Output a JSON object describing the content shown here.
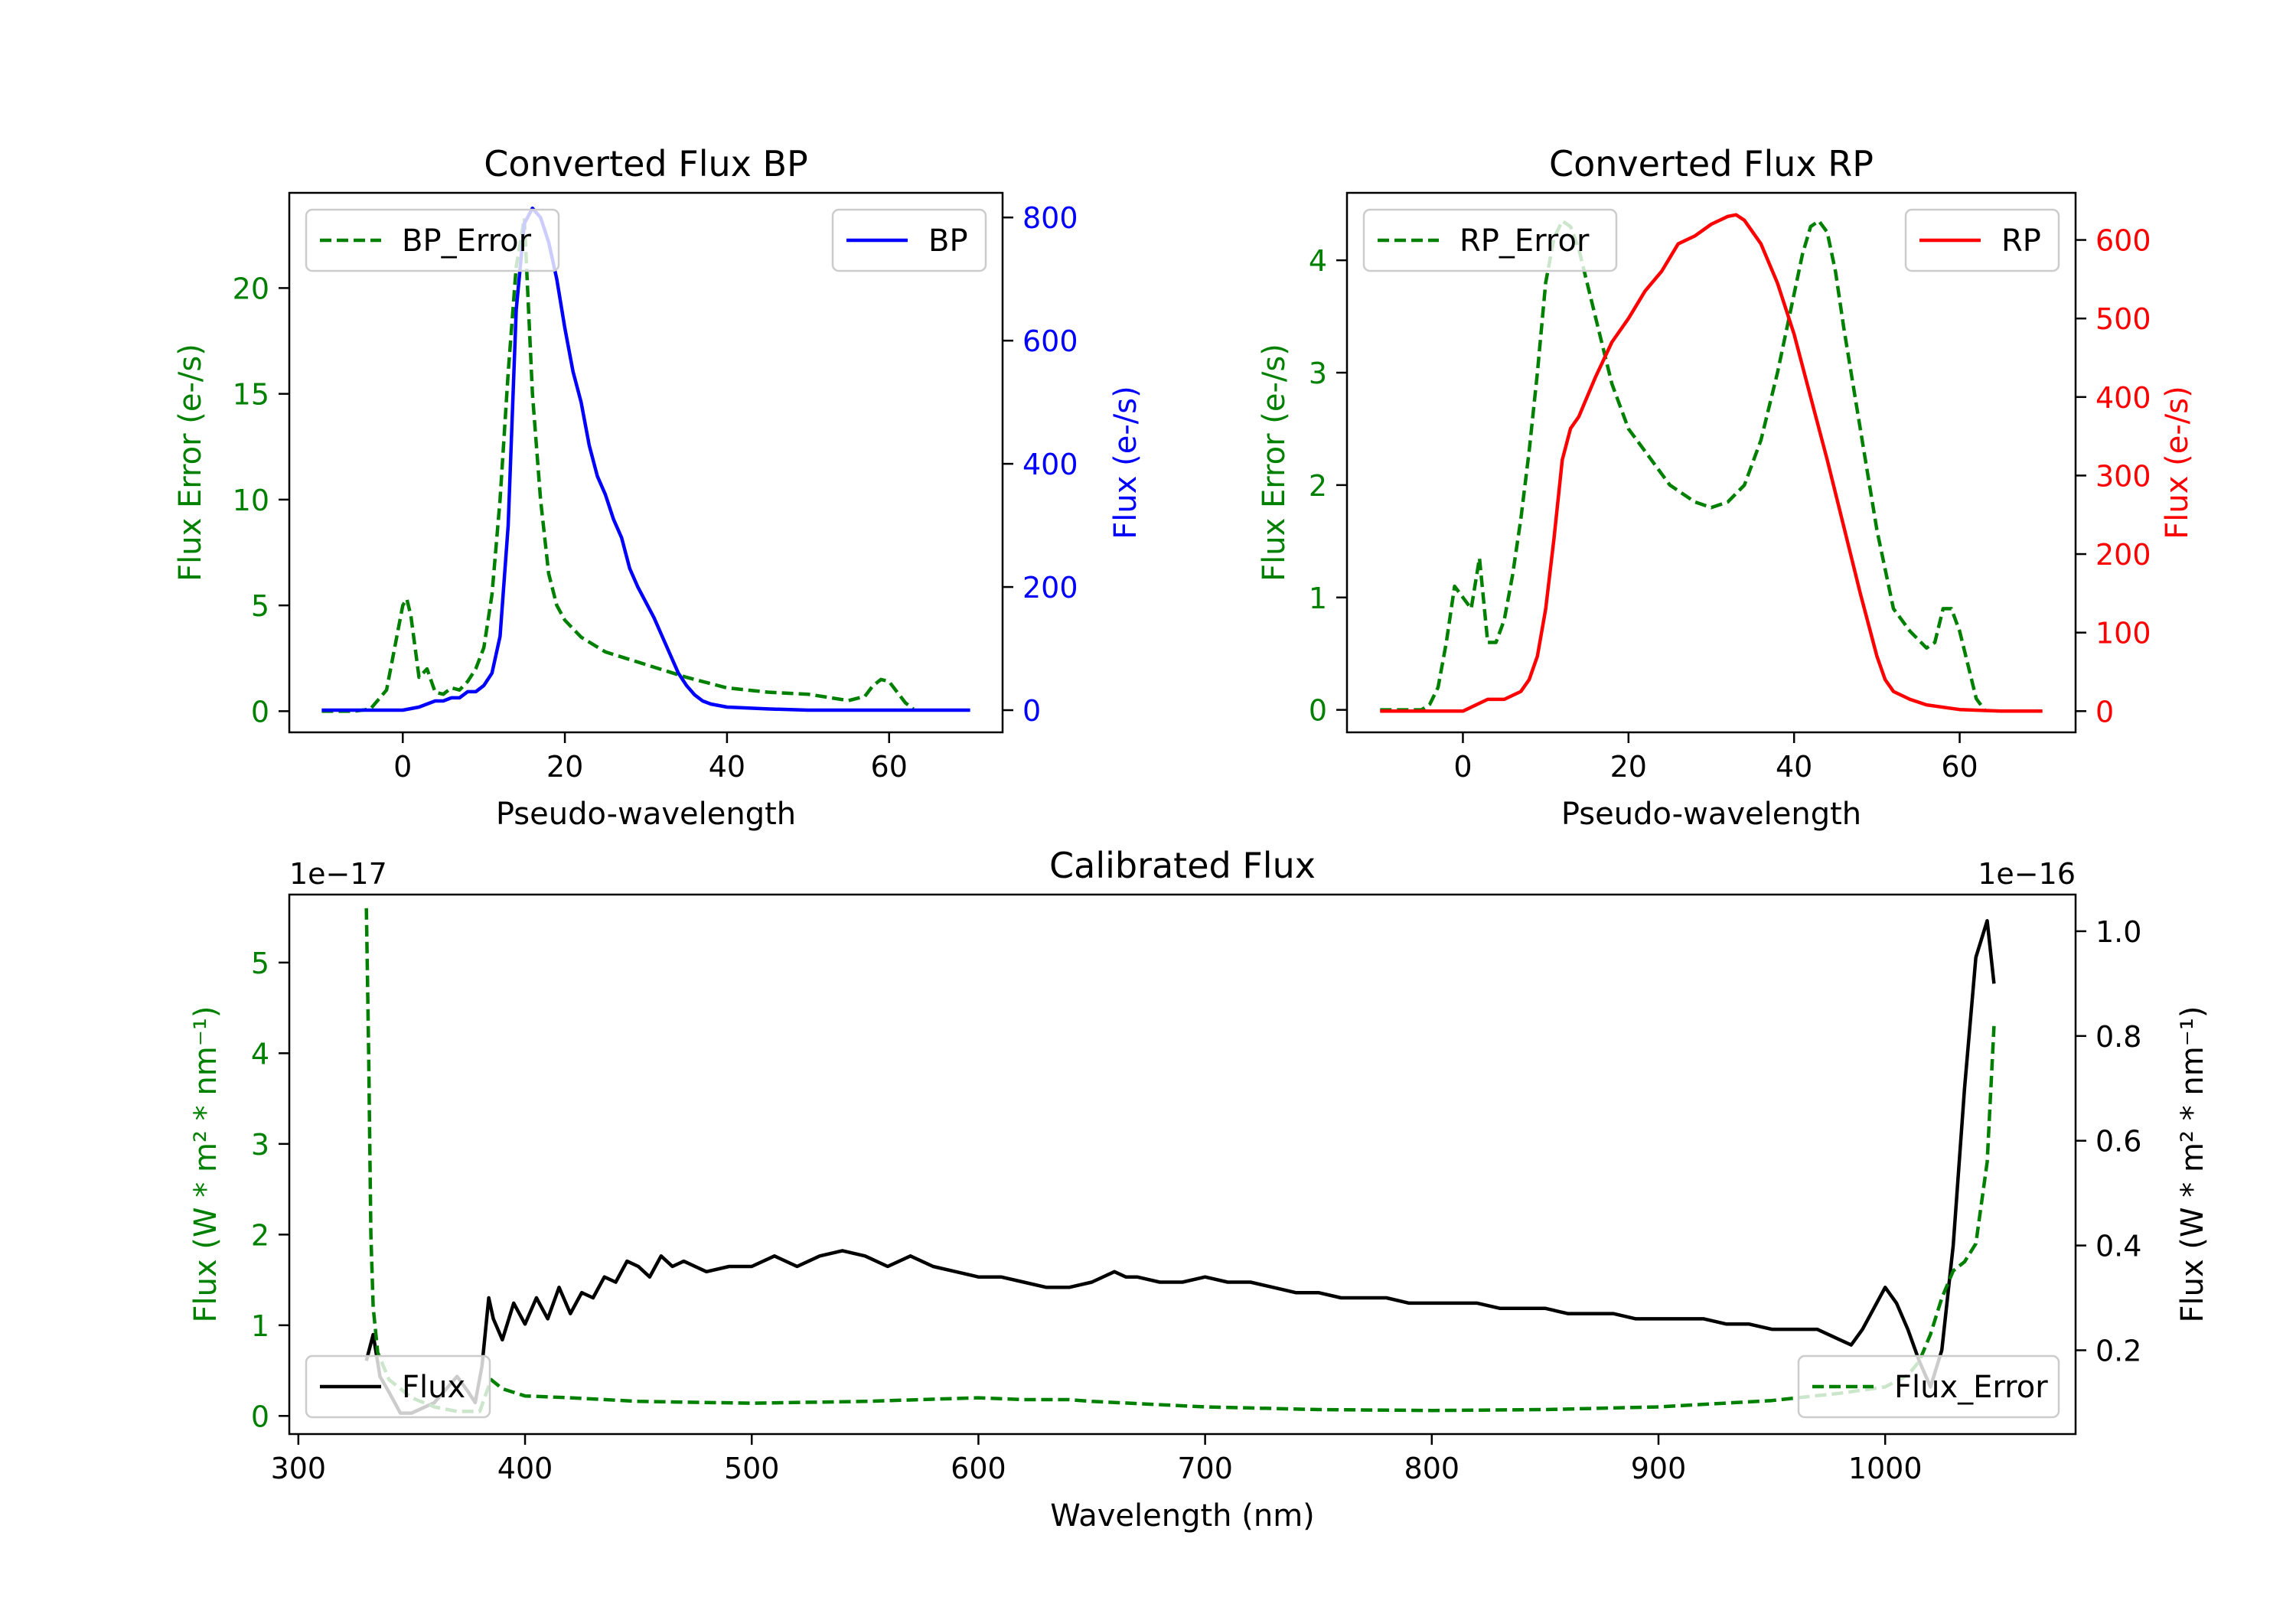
{
  "chart_data": [
    {
      "id": "bp",
      "type": "line",
      "title": "Converted Flux BP",
      "xlabel": "Pseudo-wavelength",
      "ylabel_left": "Flux Error (e-/s)",
      "ylabel_right": "Flux (e-/s)",
      "xlim": [
        -14,
        74
      ],
      "xticks": [
        0,
        20,
        40,
        60
      ],
      "ylim_left": [
        -1,
        24.5
      ],
      "yticks_left": [
        0,
        5,
        10,
        15,
        20
      ],
      "ylim_right": [
        -36,
        840
      ],
      "yticks_right": [
        0,
        200,
        400,
        600,
        800
      ],
      "left_color": "#008000",
      "right_color": "#0000ff",
      "series": [
        {
          "name": "BP_Error",
          "axis": "left",
          "style": "dashed",
          "color": "#008000",
          "x": [
            -10,
            -6,
            -4,
            -2,
            -1,
            0,
            0.5,
            1,
            2,
            3,
            4,
            5,
            6,
            7,
            8,
            9,
            10,
            11,
            12,
            13,
            14,
            15,
            16,
            17,
            18,
            19,
            20,
            22,
            25,
            30,
            35,
            40,
            45,
            50,
            55,
            57,
            58,
            59,
            60,
            61,
            62,
            63
          ],
          "values": [
            0,
            0,
            0.1,
            1,
            3,
            5,
            5.3,
            4.5,
            1.6,
            2,
            0.9,
            0.8,
            1.1,
            1.0,
            1.4,
            2,
            3,
            5.5,
            10,
            16,
            21,
            23.3,
            15,
            10,
            6.5,
            5,
            4.3,
            3.5,
            2.8,
            2.2,
            1.6,
            1.1,
            0.9,
            0.8,
            0.5,
            0.7,
            1.2,
            1.5,
            1.4,
            0.9,
            0.4,
            0.1
          ]
        },
        {
          "name": "BP",
          "axis": "right",
          "style": "solid",
          "color": "#0000ff",
          "x": [
            -10,
            -5,
            0,
            2,
            3,
            4,
            5,
            6,
            7,
            8,
            9,
            10,
            11,
            12,
            13,
            14,
            15,
            16,
            17,
            18,
            19,
            20,
            21,
            22,
            23,
            24,
            25,
            26,
            27,
            28,
            29,
            30,
            31,
            32,
            33,
            34,
            35,
            36,
            37,
            38,
            40,
            45,
            50,
            55,
            60,
            65,
            70
          ],
          "values": [
            0,
            0,
            0,
            5,
            10,
            15,
            15,
            20,
            20,
            30,
            30,
            40,
            60,
            120,
            300,
            650,
            790,
            815,
            800,
            760,
            700,
            620,
            550,
            500,
            430,
            380,
            350,
            310,
            280,
            230,
            200,
            175,
            150,
            120,
            90,
            60,
            40,
            25,
            15,
            10,
            5,
            2,
            0,
            0,
            0,
            0,
            0
          ]
        }
      ]
    },
    {
      "id": "rp",
      "type": "line",
      "title": "Converted Flux RP",
      "xlabel": "Pseudo-wavelength",
      "ylabel_left": "Flux Error (e-/s)",
      "ylabel_right": "Flux (e-/s)",
      "xlim": [
        -14,
        74
      ],
      "xticks": [
        0,
        20,
        40,
        60
      ],
      "ylim_left": [
        -0.2,
        4.6
      ],
      "yticks_left": [
        0,
        1,
        2,
        3,
        4
      ],
      "ylim_right": [
        -27,
        660
      ],
      "yticks_right": [
        0,
        100,
        200,
        300,
        400,
        500,
        600
      ],
      "left_color": "#008000",
      "right_color": "#ff0000",
      "series": [
        {
          "name": "RP_Error",
          "axis": "left",
          "style": "dashed",
          "color": "#008000",
          "x": [
            -10,
            -5,
            -4,
            -3,
            -2,
            -1,
            0,
            1,
            2,
            3,
            4,
            5,
            6,
            7,
            8,
            9,
            10,
            11,
            12,
            13,
            14,
            15,
            16,
            18,
            20,
            22,
            25,
            28,
            30,
            32,
            34,
            36,
            38,
            40,
            41,
            42,
            43,
            44,
            45,
            46,
            48,
            50,
            52,
            54,
            56,
            57,
            58,
            59,
            60,
            61,
            62,
            63
          ],
          "values": [
            0,
            0,
            0.05,
            0.2,
            0.6,
            1.1,
            1.0,
            0.9,
            1.35,
            0.6,
            0.6,
            0.8,
            1.2,
            1.7,
            2.3,
            3,
            3.8,
            4.2,
            4.35,
            4.3,
            4.1,
            3.8,
            3.5,
            2.9,
            2.5,
            2.3,
            2.0,
            1.85,
            1.8,
            1.85,
            2.0,
            2.4,
            3.0,
            3.7,
            4.05,
            4.3,
            4.35,
            4.25,
            3.9,
            3.4,
            2.5,
            1.6,
            0.9,
            0.7,
            0.55,
            0.6,
            0.9,
            0.9,
            0.7,
            0.4,
            0.1,
            0
          ]
        },
        {
          "name": "RP",
          "axis": "right",
          "style": "solid",
          "color": "#ff0000",
          "x": [
            -10,
            -5,
            0,
            2,
            3,
            5,
            7,
            8,
            9,
            10,
            11,
            12,
            13,
            14,
            15,
            16,
            18,
            20,
            22,
            24,
            26,
            28,
            30,
            32,
            33,
            34,
            36,
            38,
            40,
            42,
            44,
            46,
            48,
            50,
            51,
            52,
            54,
            56,
            58,
            60,
            65,
            70
          ],
          "values": [
            0,
            0,
            0,
            10,
            15,
            15,
            25,
            40,
            70,
            130,
            220,
            320,
            360,
            375,
            400,
            425,
            470,
            500,
            535,
            560,
            595,
            605,
            620,
            630,
            632,
            625,
            595,
            545,
            480,
            400,
            320,
            235,
            150,
            70,
            40,
            25,
            15,
            8,
            5,
            2,
            0,
            0
          ]
        }
      ]
    },
    {
      "id": "cal",
      "type": "line",
      "title": "Calibrated Flux",
      "xlabel": "Wavelength (nm)",
      "ylabel_left": "Flux (W * m² * nm⁻¹)",
      "ylabel_right": "Flux (W * m² * nm⁻¹)",
      "offset_left": "1e−17",
      "offset_right": "1e−16",
      "xlim": [
        296,
        1084
      ],
      "xticks": [
        300,
        400,
        500,
        600,
        700,
        800,
        900,
        1000
      ],
      "ylim_left": [
        -0.2,
        5.75
      ],
      "yticks_left": [
        0,
        1,
        2,
        3,
        4,
        5
      ],
      "ylim_right": [
        0.04,
        1.07
      ],
      "yticks_right": [
        0.2,
        0.4,
        0.6,
        0.8,
        1.0
      ],
      "left_color": "#008000",
      "right_color": "#000000",
      "series": [
        {
          "name": "Flux",
          "axis": "right",
          "style": "solid",
          "color": "#000000",
          "x": [
            330,
            333,
            336,
            340,
            345,
            350,
            360,
            370,
            375,
            378,
            381,
            384,
            386,
            390,
            395,
            400,
            405,
            410,
            415,
            420,
            425,
            430,
            435,
            440,
            445,
            450,
            455,
            460,
            465,
            470,
            480,
            490,
            500,
            510,
            520,
            530,
            540,
            550,
            560,
            570,
            580,
            590,
            600,
            610,
            620,
            630,
            640,
            650,
            660,
            665,
            670,
            680,
            690,
            700,
            710,
            720,
            730,
            740,
            750,
            760,
            770,
            780,
            790,
            800,
            810,
            820,
            830,
            840,
            850,
            860,
            870,
            880,
            890,
            900,
            910,
            920,
            930,
            940,
            950,
            960,
            970,
            980,
            985,
            990,
            995,
            1000,
            1005,
            1010,
            1015,
            1020,
            1025,
            1030,
            1035,
            1040,
            1045,
            1048
          ],
          "values": [
            0.18,
            0.23,
            0.15,
            0.12,
            0.08,
            0.08,
            0.1,
            0.15,
            0.12,
            0.1,
            0.17,
            0.3,
            0.26,
            0.22,
            0.29,
            0.25,
            0.3,
            0.26,
            0.32,
            0.27,
            0.31,
            0.3,
            0.34,
            0.33,
            0.37,
            0.36,
            0.34,
            0.38,
            0.36,
            0.37,
            0.35,
            0.36,
            0.36,
            0.38,
            0.36,
            0.38,
            0.39,
            0.38,
            0.36,
            0.38,
            0.36,
            0.35,
            0.34,
            0.34,
            0.33,
            0.32,
            0.32,
            0.33,
            0.35,
            0.34,
            0.34,
            0.33,
            0.33,
            0.34,
            0.33,
            0.33,
            0.32,
            0.31,
            0.31,
            0.3,
            0.3,
            0.3,
            0.29,
            0.29,
            0.29,
            0.29,
            0.28,
            0.28,
            0.28,
            0.27,
            0.27,
            0.27,
            0.26,
            0.26,
            0.26,
            0.26,
            0.25,
            0.25,
            0.24,
            0.24,
            0.24,
            0.22,
            0.21,
            0.24,
            0.28,
            0.32,
            0.29,
            0.24,
            0.18,
            0.13,
            0.2,
            0.4,
            0.7,
            0.95,
            1.02,
            0.9
          ]
        },
        {
          "name": "Flux_Error",
          "axis": "left",
          "style": "dashed",
          "color": "#008000",
          "x": [
            330,
            331,
            332,
            333,
            335,
            340,
            345,
            350,
            360,
            370,
            375,
            380,
            385,
            390,
            400,
            420,
            450,
            500,
            550,
            600,
            620,
            640,
            650,
            700,
            750,
            800,
            850,
            900,
            950,
            980,
            1000,
            1010,
            1015,
            1020,
            1025,
            1030,
            1035,
            1040,
            1045,
            1048
          ],
          "values": [
            5.6,
            4.0,
            2.0,
            1.2,
            0.7,
            0.4,
            0.3,
            0.2,
            0.1,
            0.05,
            0.05,
            0.05,
            0.4,
            0.3,
            0.22,
            0.2,
            0.16,
            0.14,
            0.16,
            0.2,
            0.18,
            0.18,
            0.16,
            0.1,
            0.07,
            0.06,
            0.07,
            0.1,
            0.17,
            0.25,
            0.32,
            0.45,
            0.6,
            0.9,
            1.3,
            1.6,
            1.7,
            1.9,
            2.8,
            4.3
          ]
        }
      ]
    }
  ]
}
